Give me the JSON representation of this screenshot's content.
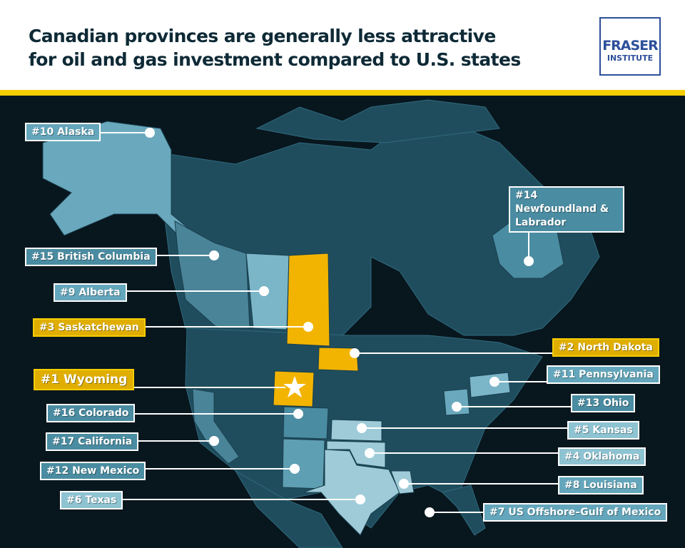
{
  "header": {
    "title": "Canadian provinces are generally less attractive for oil and gas investment compared to U.S. states",
    "logo_line1": "FRASER",
    "logo_line2": "INSTITUTE"
  },
  "colors": {
    "accent_yellow": "#f6cd00",
    "background": "#08161e",
    "land": "#1f4d5e",
    "top_rank": "#8ec3d2",
    "mid_rank": "#64a6bb",
    "low_rank": "#4a8ca1"
  },
  "labels": [
    {
      "rank": "#10",
      "name": "Alaska",
      "text": "#10 Alaska"
    },
    {
      "rank": "#14",
      "name": "Newfoundland & Labrador",
      "text": "#14 Newfoundland & Labrador"
    },
    {
      "rank": "#15",
      "name": "British Columbia",
      "text": "#15 British Columbia"
    },
    {
      "rank": "#9",
      "name": "Alberta",
      "text": "#9 Alberta"
    },
    {
      "rank": "#3",
      "name": "Saskatchewan",
      "text": "#3 Saskatchewan"
    },
    {
      "rank": "#2",
      "name": "North Dakota",
      "text": "#2 North Dakota"
    },
    {
      "rank": "#1",
      "name": "Wyoming",
      "text": "#1 Wyoming"
    },
    {
      "rank": "#11",
      "name": "Pennsylvania",
      "text": "#11 Pennsylvania"
    },
    {
      "rank": "#16",
      "name": "Colorado",
      "text": "#16 Colorado"
    },
    {
      "rank": "#13",
      "name": "Ohio",
      "text": "#13 Ohio"
    },
    {
      "rank": "#17",
      "name": "California",
      "text": "#17 California"
    },
    {
      "rank": "#5",
      "name": "Kansas",
      "text": "#5 Kansas"
    },
    {
      "rank": "#4",
      "name": "Oklahoma",
      "text": "#4 Oklahoma"
    },
    {
      "rank": "#12",
      "name": "New Mexico",
      "text": "#12 New Mexico"
    },
    {
      "rank": "#8",
      "name": "Louisiana",
      "text": "#8 Louisiana"
    },
    {
      "rank": "#6",
      "name": "Texas",
      "text": "#6 Texas"
    },
    {
      "rank": "#7",
      "name": "US Offshore–Gulf of Mexico",
      "text": "#7 US Offshore–Gulf of Mexico"
    }
  ]
}
